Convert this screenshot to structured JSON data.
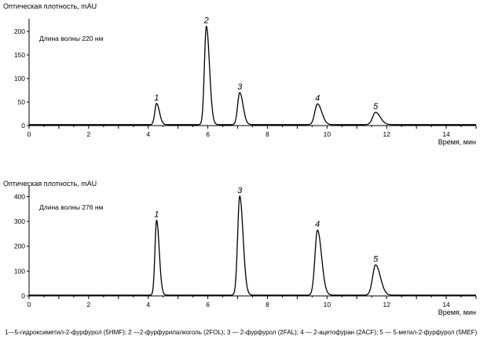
{
  "chart_data": [
    {
      "type": "line",
      "ylabel": "Оптическая плотность, mAU",
      "xlabel": "Время, мин",
      "annotation": "Длина волны 220 нм",
      "xlim": [
        0,
        15
      ],
      "ylim": [
        0,
        220
      ],
      "xticks": [
        0,
        2,
        4,
        6,
        8,
        10,
        12,
        14
      ],
      "yticks": [
        0,
        50,
        100,
        150,
        200
      ],
      "grid": false,
      "baseline": 2,
      "peaks": [
        {
          "label": "1",
          "time": 4.28,
          "value": 47,
          "width": 0.06
        },
        {
          "label": "2",
          "time": 5.95,
          "value": 211,
          "width": 0.065
        },
        {
          "label": "3",
          "time": 7.07,
          "value": 70,
          "width": 0.07
        },
        {
          "label": "4",
          "time": 9.68,
          "value": 46,
          "width": 0.09
        },
        {
          "label": "5",
          "time": 11.63,
          "value": 28,
          "width": 0.1
        }
      ]
    },
    {
      "type": "line",
      "ylabel": "Оптическая плотность, mAU",
      "xlabel": "Время, мин",
      "annotation": "Длина волны 276 нм",
      "xlim": [
        0,
        15
      ],
      "ylim": [
        0,
        430
      ],
      "xticks": [
        0,
        2,
        4,
        6,
        8,
        10,
        12,
        14
      ],
      "yticks": [
        0,
        100,
        200,
        300,
        400
      ],
      "grid": false,
      "baseline": 3,
      "peaks": [
        {
          "label": "1",
          "time": 4.28,
          "value": 305,
          "width": 0.055
        },
        {
          "label": "3",
          "time": 7.07,
          "value": 402,
          "width": 0.07
        },
        {
          "label": "4",
          "time": 9.68,
          "value": 265,
          "width": 0.085
        },
        {
          "label": "5",
          "time": 11.63,
          "value": 125,
          "width": 0.1
        }
      ]
    }
  ],
  "caption": "1—5-гидроксиметил-2-фурфурол (5HMF); 2 —2-фурфурилалкоголь (2FOL); 3 — 2-фурфурол (2FAL); 4 — 2-ацетофуран (2ACF); 5 — 5-метил-2-фурфурол (5MEF)"
}
